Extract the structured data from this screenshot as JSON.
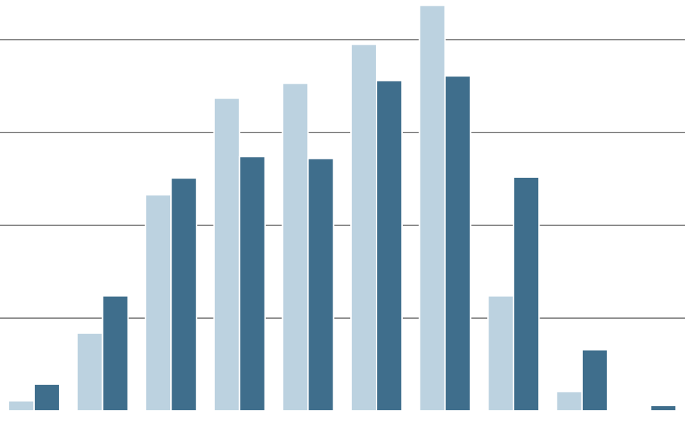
{
  "chart_data": {
    "type": "bar",
    "categories": [
      null,
      null,
      null,
      null,
      null,
      null,
      null,
      null,
      null,
      null
    ],
    "series": [
      {
        "color": "#bcd2e0",
        "values": [
          0.11,
          0.84,
          2.33,
          3.37,
          3.53,
          3.95,
          4.37,
          1.24,
          0.21,
          0.01
        ]
      },
      {
        "color": "#3f6e8c",
        "values": [
          0.29,
          1.24,
          2.51,
          2.74,
          2.72,
          3.56,
          3.61,
          2.52,
          0.66,
          0.06
        ]
      }
    ],
    "ylim": [
      0,
      4.4
    ],
    "yticks": [
      1,
      2,
      3,
      4
    ],
    "grid": true
  }
}
